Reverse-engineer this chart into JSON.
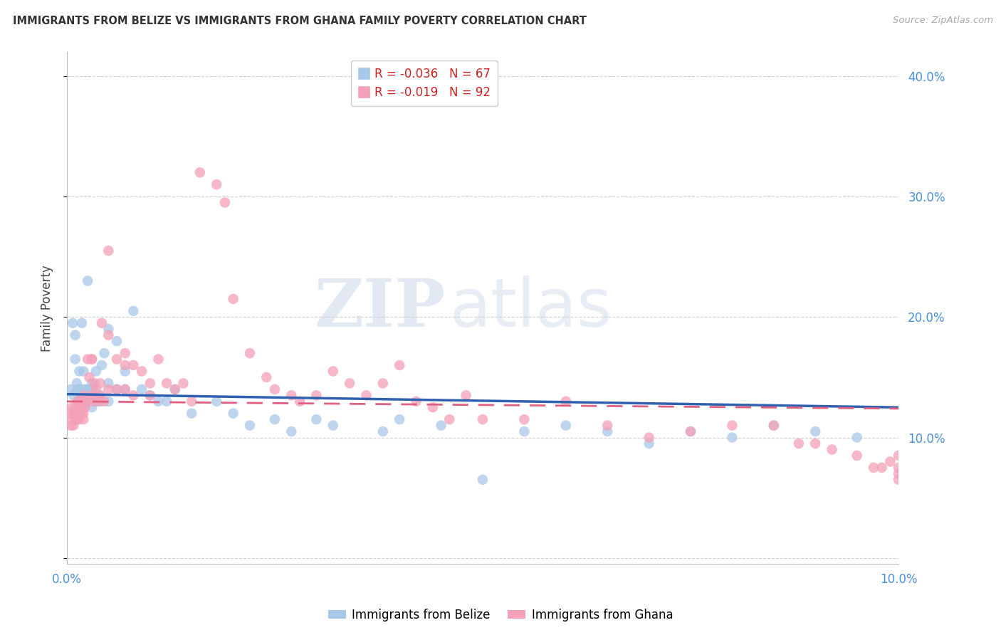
{
  "title": "IMMIGRANTS FROM BELIZE VS IMMIGRANTS FROM GHANA FAMILY POVERTY CORRELATION CHART",
  "source": "Source: ZipAtlas.com",
  "ylabel": "Family Poverty",
  "xlim": [
    0.0,
    0.1
  ],
  "ylim": [
    -0.005,
    0.42
  ],
  "yticks_right": [
    0.1,
    0.2,
    0.3,
    0.4
  ],
  "belize_color": "#a8c8e8",
  "ghana_color": "#f4a0b8",
  "belize_line_color": "#3060b0",
  "ghana_line_color": "#e06080",
  "watermark_zip": "ZIP",
  "watermark_atlas": "atlas",
  "background_color": "#ffffff",
  "grid_color": "#d0d0d0",
  "axis_color": "#4a90d9",
  "title_color": "#333333",
  "belize_x": [
    0.0005,
    0.0007,
    0.0008,
    0.001,
    0.001,
    0.0012,
    0.0013,
    0.0014,
    0.0015,
    0.0015,
    0.0016,
    0.0017,
    0.0018,
    0.002,
    0.002,
    0.002,
    0.002,
    0.0022,
    0.0023,
    0.0025,
    0.0025,
    0.0028,
    0.003,
    0.003,
    0.003,
    0.0032,
    0.0033,
    0.0035,
    0.0035,
    0.004,
    0.004,
    0.0042,
    0.0045,
    0.005,
    0.005,
    0.005,
    0.006,
    0.006,
    0.007,
    0.007,
    0.008,
    0.009,
    0.01,
    0.011,
    0.012,
    0.013,
    0.015,
    0.018,
    0.02,
    0.022,
    0.025,
    0.027,
    0.03,
    0.032,
    0.038,
    0.04,
    0.045,
    0.05,
    0.055,
    0.06,
    0.065,
    0.07,
    0.075,
    0.08,
    0.085,
    0.09,
    0.095
  ],
  "belize_y": [
    0.14,
    0.195,
    0.135,
    0.185,
    0.165,
    0.145,
    0.14,
    0.13,
    0.155,
    0.12,
    0.14,
    0.135,
    0.195,
    0.125,
    0.14,
    0.155,
    0.13,
    0.13,
    0.14,
    0.135,
    0.23,
    0.14,
    0.125,
    0.135,
    0.145,
    0.14,
    0.135,
    0.13,
    0.155,
    0.135,
    0.13,
    0.16,
    0.17,
    0.19,
    0.145,
    0.13,
    0.14,
    0.18,
    0.14,
    0.155,
    0.205,
    0.14,
    0.135,
    0.13,
    0.13,
    0.14,
    0.12,
    0.13,
    0.12,
    0.11,
    0.115,
    0.105,
    0.115,
    0.11,
    0.105,
    0.115,
    0.11,
    0.065,
    0.105,
    0.11,
    0.105,
    0.095,
    0.105,
    0.1,
    0.11,
    0.105,
    0.1
  ],
  "ghana_x": [
    0.0003,
    0.0005,
    0.0006,
    0.0007,
    0.0008,
    0.0008,
    0.001,
    0.001,
    0.001,
    0.0012,
    0.0013,
    0.0014,
    0.0015,
    0.0015,
    0.0016,
    0.0017,
    0.0018,
    0.002,
    0.002,
    0.002,
    0.002,
    0.0022,
    0.0025,
    0.0025,
    0.0027,
    0.003,
    0.003,
    0.003,
    0.0032,
    0.0033,
    0.0035,
    0.0038,
    0.004,
    0.004,
    0.0042,
    0.0045,
    0.005,
    0.005,
    0.005,
    0.006,
    0.006,
    0.007,
    0.007,
    0.007,
    0.008,
    0.008,
    0.009,
    0.01,
    0.01,
    0.011,
    0.012,
    0.013,
    0.014,
    0.015,
    0.016,
    0.018,
    0.019,
    0.02,
    0.022,
    0.024,
    0.025,
    0.027,
    0.028,
    0.03,
    0.032,
    0.034,
    0.036,
    0.038,
    0.04,
    0.042,
    0.044,
    0.046,
    0.048,
    0.05,
    0.055,
    0.06,
    0.065,
    0.07,
    0.075,
    0.08,
    0.085,
    0.088,
    0.09,
    0.092,
    0.095,
    0.097,
    0.098,
    0.099,
    0.1,
    0.1,
    0.1,
    0.1
  ],
  "ghana_y": [
    0.12,
    0.11,
    0.125,
    0.115,
    0.12,
    0.11,
    0.12,
    0.125,
    0.115,
    0.115,
    0.13,
    0.12,
    0.12,
    0.115,
    0.13,
    0.125,
    0.12,
    0.135,
    0.12,
    0.13,
    0.115,
    0.125,
    0.165,
    0.13,
    0.15,
    0.165,
    0.135,
    0.165,
    0.13,
    0.145,
    0.14,
    0.13,
    0.145,
    0.135,
    0.195,
    0.13,
    0.255,
    0.185,
    0.14,
    0.165,
    0.14,
    0.17,
    0.16,
    0.14,
    0.16,
    0.135,
    0.155,
    0.145,
    0.135,
    0.165,
    0.145,
    0.14,
    0.145,
    0.13,
    0.32,
    0.31,
    0.295,
    0.215,
    0.17,
    0.15,
    0.14,
    0.135,
    0.13,
    0.135,
    0.155,
    0.145,
    0.135,
    0.145,
    0.16,
    0.13,
    0.125,
    0.115,
    0.135,
    0.115,
    0.115,
    0.13,
    0.11,
    0.1,
    0.105,
    0.11,
    0.11,
    0.095,
    0.095,
    0.09,
    0.085,
    0.075,
    0.075,
    0.08,
    0.085,
    0.075,
    0.07,
    0.065
  ]
}
